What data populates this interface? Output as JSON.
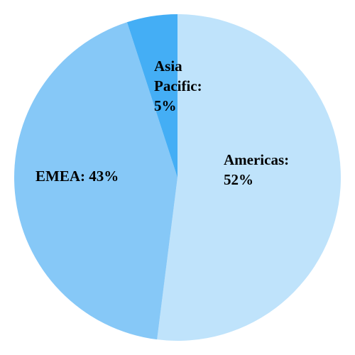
{
  "chart_data": {
    "type": "pie",
    "categories": [
      "Americas",
      "EMEA",
      "Asia Pacific"
    ],
    "values": [
      52,
      43,
      5
    ],
    "value_labels": [
      "Americas: 52%",
      "EMEA: 43%",
      "Asia Pacific: 5%"
    ],
    "colors": [
      "#bfe3fb",
      "#86c8f7",
      "#44aef5"
    ]
  }
}
